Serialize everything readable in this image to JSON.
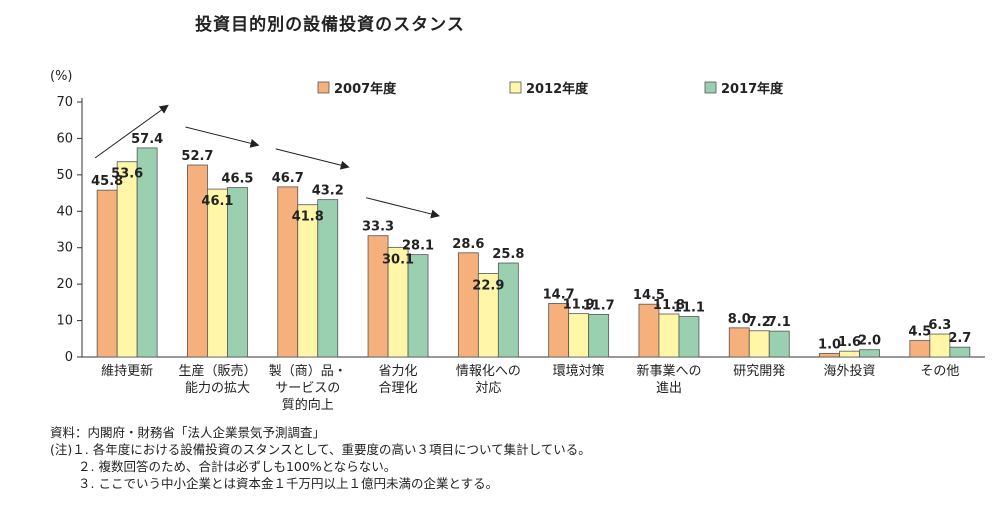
{
  "chart_data": {
    "type": "bar",
    "title": "投資目的別の設備投資のスタンス",
    "ylabel": "(%)",
    "ylim": [
      0,
      70
    ],
    "yticks": [
      "0",
      "10",
      "20",
      "30",
      "40",
      "50",
      "60",
      "70"
    ],
    "grid": false,
    "legend_position": "top",
    "categories": [
      [
        "維持更新"
      ],
      [
        "生産（販売）",
        "能力の拡大"
      ],
      [
        "製（商）品・",
        "サービスの",
        "質的向上"
      ],
      [
        "省力化",
        "合理化"
      ],
      [
        "情報化への",
        "対応"
      ],
      [
        "環境対策"
      ],
      [
        "新事業への",
        "進出"
      ],
      [
        "研究開発"
      ],
      [
        "海外投資"
      ],
      [
        "その他"
      ]
    ],
    "series": [
      {
        "name": "2007年度",
        "color": "#F5B07C",
        "values": [
          45.8,
          52.7,
          46.7,
          33.3,
          28.6,
          14.7,
          14.5,
          8.0,
          1.0,
          4.5
        ],
        "labels": [
          "45.8",
          "52.7",
          "46.7",
          "33.3",
          "28.6",
          "14.7",
          "14.5",
          "8.0",
          "1.0",
          "4.5"
        ]
      },
      {
        "name": "2012年度",
        "color": "#FFF6A8",
        "values": [
          53.6,
          46.1,
          41.8,
          30.1,
          22.9,
          11.9,
          11.8,
          7.2,
          1.6,
          6.3
        ],
        "labels": [
          "53.6",
          "46.1",
          "41.8",
          "30.1",
          "22.9",
          "11.9",
          "11.8",
          "7.2",
          "1.6",
          "6.3"
        ]
      },
      {
        "name": "2017年度",
        "color": "#9ACFAF",
        "values": [
          57.4,
          46.5,
          43.2,
          28.1,
          25.8,
          11.7,
          11.1,
          7.1,
          2.0,
          2.7
        ],
        "labels": [
          "57.4",
          "46.5",
          "43.2",
          "28.1",
          "25.8",
          "11.7",
          "11.1",
          "7.1",
          "2.0",
          "2.7"
        ]
      }
    ],
    "annotations": [
      {
        "type": "trend-arrow",
        "category_index": 0,
        "direction": "up"
      },
      {
        "type": "trend-arrow",
        "category_index": 1,
        "direction": "down"
      },
      {
        "type": "trend-arrow",
        "category_index": 2,
        "direction": "down"
      },
      {
        "type": "trend-arrow",
        "category_index": 3,
        "direction": "down"
      }
    ]
  },
  "notes": {
    "source": "資料：内閣府・財務省「法人企業景気予測調査」",
    "note1": "(注)１. 各年度における設備投資のスタンスとして、重要度の高い３項目について集計している。",
    "note2": "２. 複数回答のため、合計は必ずしも100%とならない。",
    "note3": "３. ここでいう中小企業とは資本金１千万円以上１億円未満の企業とする。"
  },
  "colors": {
    "bar_stroke": "#555555",
    "axis": "#333333"
  }
}
